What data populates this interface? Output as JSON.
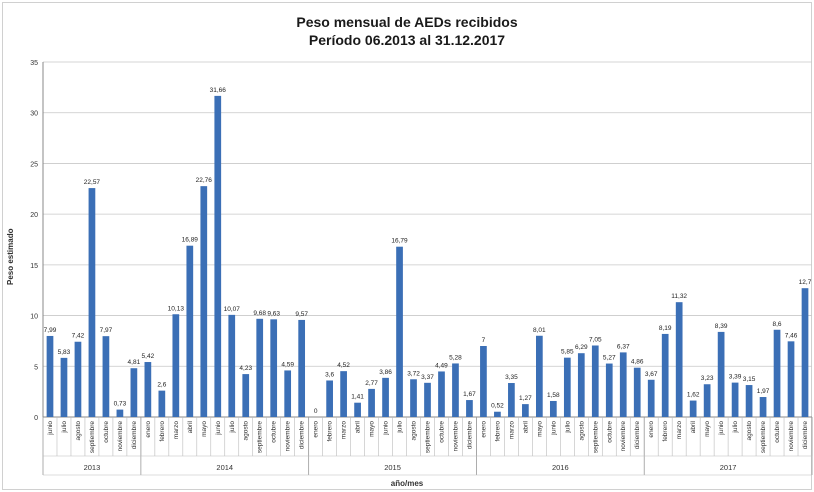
{
  "chart_data": {
    "type": "bar",
    "title": "Peso mensual de AEDs recibidos",
    "subtitle": "Período 06.2013 al 31.12.2017",
    "ylabel": "Peso estimado",
    "xlabel": "año/mes",
    "ylim": [
      0,
      35
    ],
    "yticks": [
      0,
      5,
      10,
      15,
      20,
      25,
      30,
      35
    ],
    "grid": true,
    "bar_color": "#3b6fb6",
    "groups": [
      {
        "year": "2013",
        "months": [
          "junio",
          "julio",
          "agosto",
          "septiembre",
          "octubre",
          "noviembre",
          "diciembre"
        ],
        "values": [
          7.99,
          5.83,
          7.42,
          22.57,
          7.97,
          0.73,
          4.81
        ],
        "labels": [
          "7,99",
          "5,83",
          "7,42",
          "22,57",
          "7,97",
          "0,73",
          "4,81"
        ]
      },
      {
        "year": "2014",
        "months": [
          "enero",
          "febrero",
          "marzo",
          "abril",
          "mayo",
          "junio",
          "julio",
          "agosto",
          "septiembre",
          "octubre",
          "noviembre",
          "diciembre"
        ],
        "values": [
          5.42,
          2.6,
          10.13,
          16.89,
          22.76,
          31.66,
          10.07,
          4.23,
          9.68,
          9.63,
          4.59,
          9.57
        ],
        "labels": [
          "5,42",
          "2,6",
          "10,13",
          "16,89",
          "22,76",
          "31,66",
          "10,07",
          "4,23",
          "9,68",
          "9,63",
          "4,59",
          "9,57"
        ]
      },
      {
        "year": "2015",
        "months": [
          "enero",
          "febrero",
          "marzo",
          "abril",
          "mayo",
          "junio",
          "julio",
          "agosto",
          "septiembre",
          "octubre",
          "noviembre",
          "diciembre"
        ],
        "values": [
          0,
          3.6,
          4.52,
          1.41,
          2.77,
          3.86,
          16.79,
          3.72,
          3.37,
          4.49,
          5.28,
          1.67
        ],
        "labels": [
          "0",
          "3,6",
          "4,52",
          "1,41",
          "2,77",
          "3,86",
          "16,79",
          "3,72",
          "3,37",
          "4,49",
          "5,28",
          "1,67"
        ]
      },
      {
        "year": "2016",
        "months": [
          "enero",
          "febrero",
          "marzo",
          "abril",
          "mayo",
          "junio",
          "julio",
          "agosto",
          "septiembre",
          "octubre",
          "noviembre",
          "diciembre"
        ],
        "values": [
          7,
          0.52,
          3.35,
          1.27,
          8.01,
          1.58,
          5.85,
          6.29,
          7.05,
          5.27,
          6.37,
          4.86
        ],
        "labels": [
          "7",
          "0,52",
          "3,35",
          "1,27",
          "8,01",
          "1,58",
          "5,85",
          "6,29",
          "7,05",
          "5,27",
          "6,37",
          "4,86"
        ]
      },
      {
        "year": "2017",
        "months": [
          "enero",
          "febrero",
          "marzo",
          "abril",
          "mayo",
          "junio",
          "julio",
          "agosto",
          "septiembre",
          "octubre",
          "noviembre",
          "diciembre"
        ],
        "values": [
          3.67,
          8.19,
          11.32,
          1.62,
          3.23,
          8.39,
          3.39,
          3.15,
          1.97,
          8.6,
          7.46,
          12.7
        ],
        "labels": [
          "3,67",
          "8,19",
          "11,32",
          "1,62",
          "3,23",
          "8,39",
          "3,39",
          "3,15",
          "1,97",
          "8,6",
          "7,46",
          "12,7"
        ]
      }
    ]
  }
}
